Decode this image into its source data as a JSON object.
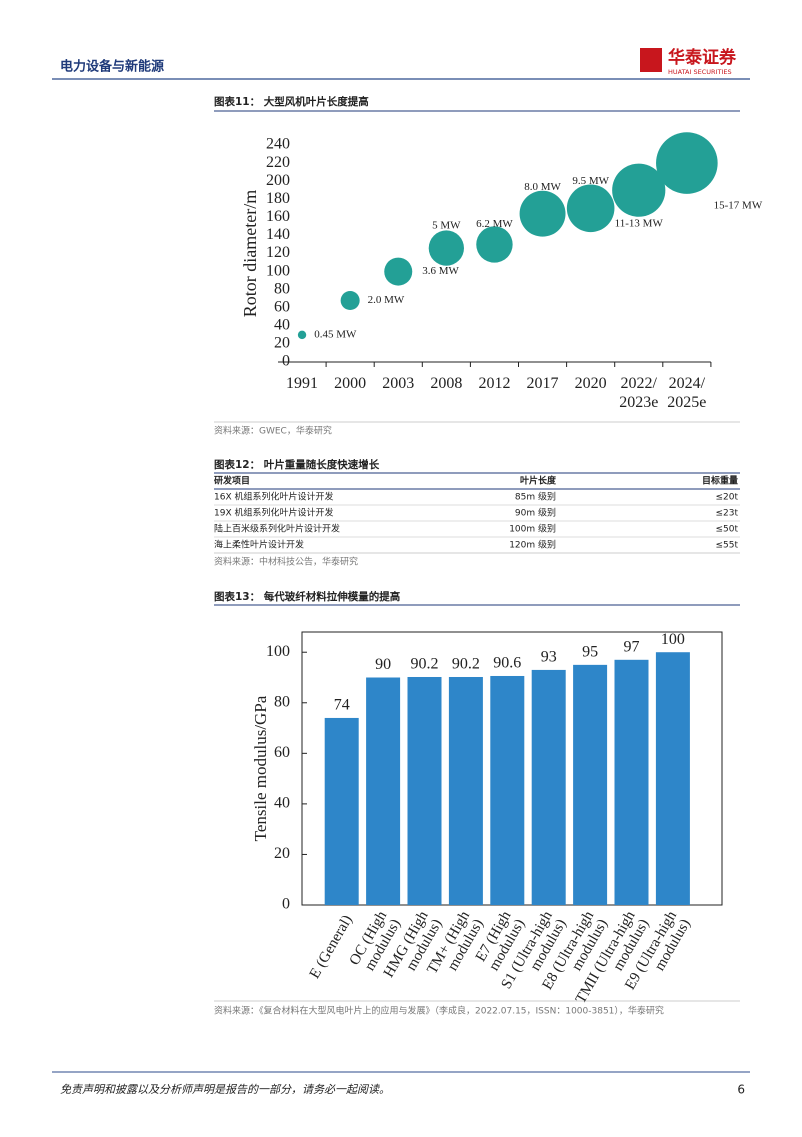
{
  "header": {
    "section": "电力设备与新能源",
    "brand": "华泰证券",
    "brand_en": "HUATAI SECURITIES"
  },
  "figure11": {
    "caption": "图表11： 大型风机叶片长度提高",
    "source": "资料来源：GWEC，华泰研究"
  },
  "table": {
    "caption": "图表12： 叶片重量随长度快速增长",
    "columns": [
      "研发项目",
      "叶片长度",
      "目标重量"
    ],
    "rows": [
      [
        "16X 机组系列化叶片设计开发",
        "85m 级别",
        "≤20t"
      ],
      [
        "19X 机组系列化叶片设计开发",
        "90m 级别",
        "≤23t"
      ],
      [
        "陆上百米级系列化叶片设计开发",
        "100m 级别",
        "≤50t"
      ],
      [
        "海上柔性叶片设计开发",
        "120m 级别",
        "≤55t"
      ]
    ],
    "source": "资料来源：中材科技公告，华泰研究"
  },
  "figure13": {
    "caption": "图表13： 每代玻纤材料拉伸模量的提高",
    "source": "资料来源：《复合材料在大型风电叶片上的应用与发展》（李成良，2022.07.15，ISSN：1000-3851），华泰研究"
  },
  "chart_data": [
    {
      "type": "bubble",
      "y_label": "Rotor diameter/m",
      "categories": [
        "1991",
        "2000",
        "2003",
        "2008",
        "2012",
        "2017",
        "2020",
        "2022/\n2023e",
        "2024/\n2025e"
      ],
      "values": [
        30,
        68,
        100,
        126,
        130,
        164,
        170,
        190,
        220
      ],
      "point_labels": [
        "0.45 MW",
        "2.0 MW",
        "3.6 MW",
        "5 MW",
        "6.2 MW",
        "8.0 MW",
        "9.5 MW",
        "11-13 MW",
        "15-17 MW"
      ],
      "color": "#23a096",
      "ylim": [
        0,
        240
      ],
      "yticks": [
        0,
        20,
        40,
        60,
        80,
        100,
        120,
        140,
        160,
        180,
        200,
        220,
        240
      ]
    },
    {
      "type": "bar",
      "y_label": "Tensile modulus/GPa",
      "categories": [
        "E (General)",
        "OC (High modulus)",
        "HMG (High modulus)",
        "TM+ (High modulus)",
        "E7 (High modulus)",
        "S1 (Ultra-high modulus)",
        "E8 (Ultra-high modulus)",
        "TMII (Ultra-high modulus)",
        "E9 (Ultra-high modulus)"
      ],
      "values": [
        74,
        90,
        90.2,
        90.2,
        90.6,
        93,
        95,
        97,
        100
      ],
      "color": "#2e86c9",
      "ylim": [
        0,
        108
      ],
      "yticks": [
        0,
        20,
        40,
        60,
        80,
        100
      ]
    }
  ],
  "footer": {
    "disclaimer": "免责声明和披露以及分析师声明是报告的一部分，请务必一起阅读。",
    "page": 6
  }
}
